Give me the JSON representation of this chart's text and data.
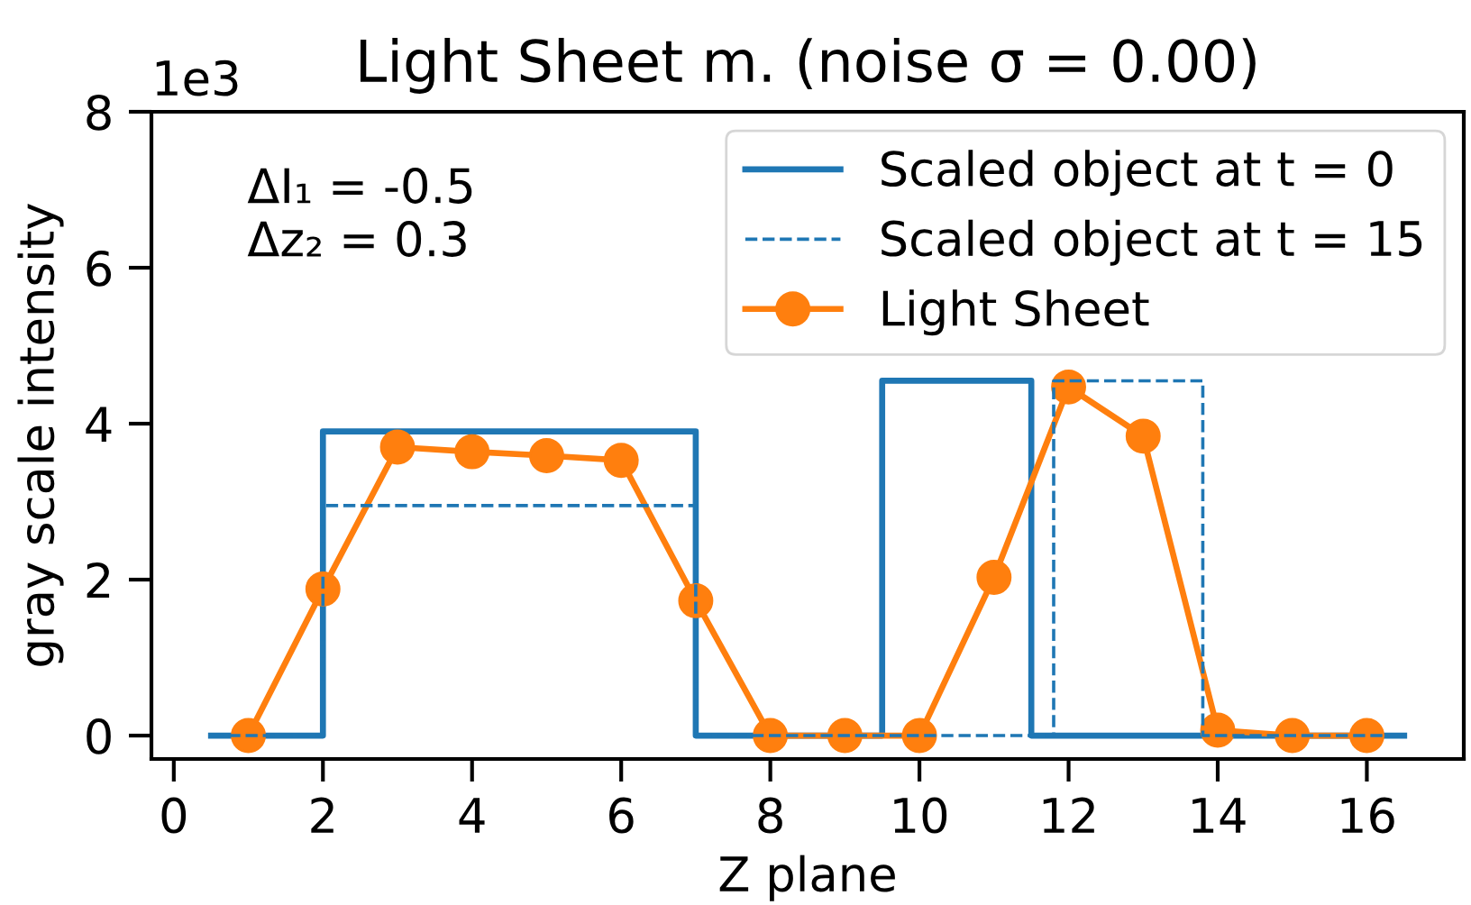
{
  "chart_data": {
    "type": "line",
    "title": "Light Sheet m. (noise σ = 0.00)",
    "xlabel": "Z plane",
    "ylabel": "gray scale intensity",
    "annotations": [
      "1e3",
      "ΔI₁ = -0.5\nΔz₂ = 0.3"
    ],
    "xlim": [
      -0.3,
      17.3
    ],
    "xticks": [
      0,
      2,
      4,
      6,
      8,
      10,
      12,
      14,
      16
    ],
    "ylim": [
      -0.3,
      8
    ],
    "yticks": [
      0,
      2,
      4,
      6,
      8
    ],
    "legend": "top right",
    "series": [
      {
        "name": "Scaled object at t = 0",
        "type": "step",
        "color": "#1f77b4",
        "line_style": "solid",
        "marker": "none",
        "x": [
          0.5,
          2,
          7,
          9.5,
          11.5,
          16.5
        ],
        "values": [
          0,
          3.9,
          0,
          4.55,
          0,
          0
        ]
      },
      {
        "name": "Scaled object at t = 15",
        "type": "step",
        "color": "#1f77b4",
        "line_style": "dashed",
        "marker": "none",
        "x": [
          0.5,
          2,
          7,
          11.8,
          13.8,
          16.5
        ],
        "values": [
          0,
          2.95,
          0,
          4.55,
          0,
          0
        ]
      },
      {
        "name": "Light Sheet",
        "color": "#ff7f0e",
        "line_style": "solid",
        "marker": "circle",
        "x": [
          1,
          2,
          3,
          4,
          5,
          6,
          7,
          8,
          9,
          10,
          11,
          12,
          13,
          14,
          15,
          16
        ],
        "values": [
          0,
          1.88,
          3.7,
          3.64,
          3.59,
          3.53,
          1.73,
          0,
          0,
          0,
          2.03,
          4.47,
          3.84,
          0.07,
          0,
          0
        ]
      }
    ]
  }
}
